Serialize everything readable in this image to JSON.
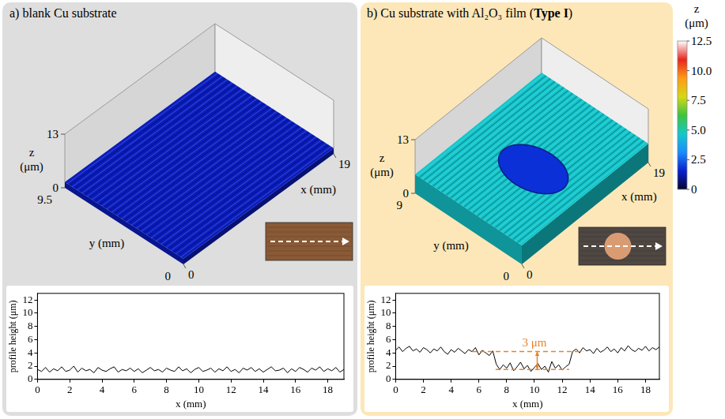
{
  "panels": [
    {
      "title": [
        {
          "text": "a) blank Cu substrate"
        }
      ],
      "surface": {
        "x_label": "x (mm)",
        "y_label": "y (mm)",
        "z_label": "z (μm)",
        "xlim": [
          0,
          19
        ],
        "ylim": [
          0,
          9.5
        ],
        "zlim": [
          0,
          13
        ],
        "xticks": [
          0,
          19
        ],
        "yticks": [
          0,
          9.5
        ],
        "zticks": [
          0,
          13
        ],
        "level": 1.4
      }
    },
    {
      "title": [
        {
          "text": "b) Cu substrate with Al₂O₃ film ("
        },
        {
          "text": "Type I",
          "bold": true
        },
        {
          "text": ")"
        }
      ],
      "surface": {
        "x_label": "x (mm)",
        "y_label": "y (mm)",
        "z_label": "z (μm)",
        "xlim": [
          0,
          19
        ],
        "ylim": [
          0,
          9
        ],
        "zlim": [
          0,
          13
        ],
        "xticks": [
          0,
          19
        ],
        "yticks": [
          0,
          9
        ],
        "zticks": [
          0,
          13
        ],
        "level": 4.6,
        "recess": {
          "x": [
            7,
            12.5
          ],
          "y": [
            2,
            7
          ],
          "level": 1.8
        }
      }
    }
  ],
  "colorbar": {
    "title": "z (μm)",
    "range": [
      0,
      12.5
    ],
    "ticks": [
      0,
      2.5,
      {
        "value": 5,
        "label": "5.0"
      },
      7.5,
      {
        "value": 10,
        "label": "10.0"
      },
      12.5
    ],
    "colors": [
      "#05052e",
      "#0a1fd0",
      "#1a8cff",
      "#12c9c9",
      "#3dc43d",
      "#d6d814",
      "#ff9a14",
      "#e8261e",
      "#ffffff"
    ]
  },
  "chart_data": [
    {
      "type": "line",
      "x_label": "x (mm)",
      "y_label": "profile height (μm)",
      "color": "#000000",
      "grid": false,
      "xlim": [
        0,
        19
      ],
      "ylim": [
        0,
        13
      ],
      "xticks": [
        0,
        2,
        4,
        6,
        8,
        10,
        12,
        14,
        16,
        18
      ],
      "yticks": [
        0,
        2,
        4,
        6,
        8,
        10,
        12
      ],
      "x": [
        0,
        0.25,
        0.5,
        0.75,
        1,
        1.25,
        1.5,
        1.75,
        2,
        2.25,
        2.5,
        2.75,
        3,
        3.25,
        3.5,
        3.75,
        4,
        4.25,
        4.5,
        4.75,
        5,
        5.25,
        5.5,
        5.75,
        6,
        6.25,
        6.5,
        6.75,
        7,
        7.25,
        7.5,
        7.75,
        8,
        8.25,
        8.5,
        8.75,
        9,
        9.25,
        9.5,
        9.75,
        10,
        10.25,
        10.5,
        10.75,
        11,
        11.25,
        11.5,
        11.75,
        12,
        12.25,
        12.5,
        12.75,
        13,
        13.25,
        13.5,
        13.75,
        14,
        14.25,
        14.5,
        14.75,
        15,
        15.25,
        15.5,
        15.75,
        16,
        16.25,
        16.5,
        16.75,
        17,
        17.25,
        17.5,
        17.75,
        18,
        18.25,
        18.5,
        18.75,
        19
      ],
      "values": [
        1.5,
        1.2,
        1.8,
        1.1,
        1.6,
        1.3,
        1.9,
        1.2,
        1.4,
        2.0,
        1.1,
        1.7,
        1.3,
        1.5,
        1.0,
        1.8,
        1.4,
        1.2,
        1.6,
        1.9,
        1.1,
        1.5,
        1.3,
        1.7,
        1.2,
        1.6,
        1.0,
        1.4,
        1.8,
        1.3,
        1.5,
        1.1,
        1.7,
        1.4,
        1.2,
        1.9,
        1.3,
        1.6,
        1.0,
        1.5,
        1.8,
        1.2,
        1.4,
        1.7,
        1.1,
        1.6,
        1.3,
        1.9,
        1.2,
        1.5,
        1.0,
        1.7,
        1.4,
        1.8,
        1.2,
        1.6,
        1.1,
        1.5,
        1.9,
        1.3,
        1.4,
        1.7,
        1.0,
        1.6,
        1.2,
        1.8,
        1.5,
        1.1,
        1.7,
        1.4,
        1.9,
        1.2,
        1.6,
        1.3,
        1.8,
        1.1,
        1.5
      ]
    },
    {
      "type": "line",
      "x_label": "x (mm)",
      "y_label": "profile height (μm)",
      "color": "#000000",
      "grid": false,
      "xlim": [
        0,
        19
      ],
      "ylim": [
        0,
        13
      ],
      "xticks": [
        0,
        2,
        4,
        6,
        8,
        10,
        12,
        14,
        16,
        18
      ],
      "yticks": [
        0,
        2,
        4,
        6,
        8,
        10,
        12
      ],
      "x": [
        0,
        0.25,
        0.5,
        0.75,
        1,
        1.25,
        1.5,
        1.75,
        2,
        2.25,
        2.5,
        2.75,
        3,
        3.25,
        3.5,
        3.75,
        4,
        4.25,
        4.5,
        4.75,
        5,
        5.25,
        5.5,
        5.75,
        6,
        6.25,
        6.5,
        6.75,
        7,
        7.25,
        7.5,
        7.75,
        8,
        8.25,
        8.5,
        8.75,
        9,
        9.25,
        9.5,
        9.75,
        10,
        10.25,
        10.5,
        10.75,
        11,
        11.25,
        11.5,
        11.75,
        12,
        12.25,
        12.5,
        12.75,
        13,
        13.25,
        13.5,
        13.75,
        14,
        14.25,
        14.5,
        14.75,
        15,
        15.25,
        15.5,
        15.75,
        16,
        16.25,
        16.5,
        16.75,
        17,
        17.25,
        17.5,
        17.75,
        18,
        18.25,
        18.5,
        18.75,
        19
      ],
      "values": [
        4.4,
        4.9,
        4.2,
        4.7,
        5.0,
        4.3,
        4.6,
        4.1,
        4.8,
        4.5,
        4.0,
        4.6,
        4.3,
        4.9,
        4.2,
        3.8,
        4.5,
        4.1,
        4.7,
        4.3,
        3.9,
        4.5,
        4.2,
        4.8,
        3.7,
        4.4,
        4.0,
        3.6,
        4.3,
        2.3,
        1.5,
        2.2,
        1.7,
        2.5,
        1.3,
        1.9,
        2.6,
        1.6,
        2.1,
        1.2,
        1.8,
        2.4,
        1.5,
        2.0,
        1.1,
        2.7,
        1.7,
        2.2,
        1.4,
        1.9,
        2.3,
        4.2,
        4.6,
        4.0,
        4.8,
        4.3,
        4.5,
        3.9,
        4.7,
        4.1,
        4.4,
        4.9,
        4.2,
        4.6,
        4.0,
        4.8,
        4.3,
        5.1,
        4.5,
        4.2,
        4.7,
        4.4,
        5.0,
        4.3,
        4.8,
        4.5,
        4.9
      ],
      "annotations": [
        {
          "type": "line",
          "x": [
            5.5,
            13.5
          ],
          "y": [
            4.2,
            4.2
          ],
          "color": "#e8822a",
          "line_style": "dashed"
        },
        {
          "type": "line",
          "x": [
            7.2,
            12.5
          ],
          "y": [
            1.5,
            1.5
          ],
          "color": "#e8822a",
          "line_style": "dashed"
        },
        {
          "type": "arrow",
          "x": [
            10.2,
            10.2
          ],
          "y": [
            1.5,
            4.2
          ],
          "color": "#e8822a"
        },
        {
          "type": "text",
          "text": "3 μm",
          "x": 10,
          "y": 5.4,
          "color": "#e8822a"
        }
      ]
    }
  ]
}
